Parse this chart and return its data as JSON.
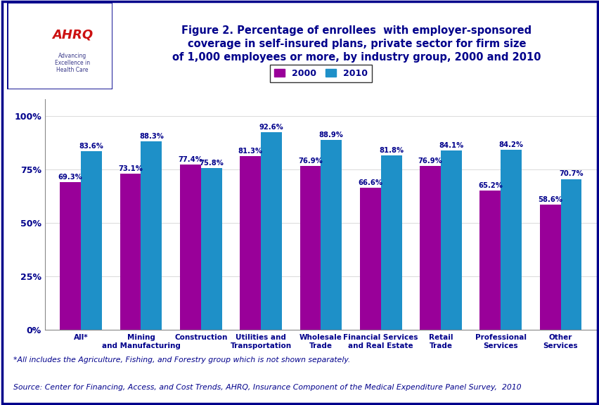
{
  "categories": [
    "All*",
    "Mining\nand Manufacturing",
    "Construction",
    "Utilities and\nTransportation",
    "Wholesale\nTrade",
    "Financial Services\nand Real Estate",
    "Retail\nTrade",
    "Professional\nServices",
    "Other\nServices"
  ],
  "values_2000": [
    69.3,
    73.1,
    77.4,
    81.3,
    76.9,
    66.6,
    76.9,
    65.2,
    58.6
  ],
  "values_2010": [
    83.6,
    88.3,
    75.8,
    92.6,
    88.9,
    81.8,
    84.1,
    84.2,
    70.7
  ],
  "color_2000": "#990099",
  "color_2010": "#1E90C8",
  "title_line1": "Figure 2. Percentage of enrollees  with employer-sponsored",
  "title_line2": "coverage in self-insured plans, private sector for firm size",
  "title_line3": "of 1,000 employees or more, by industry group, 2000 and 2010",
  "ylabel_ticks": [
    "0%",
    "25%",
    "50%",
    "75%",
    "100%"
  ],
  "ytick_vals": [
    0,
    25,
    50,
    75,
    100
  ],
  "ylim": [
    0,
    108
  ],
  "legend_labels": [
    "2000",
    "2010"
  ],
  "footnote1": "*All includes the Agriculture, Fishing, and Forestry group which is not shown separately.",
  "footnote2": "Source: Center for Financing, Access, and Cost Trends, AHRQ, Insurance Component of the Medical Expenditure Panel Survey,  2010",
  "bar_width": 0.35,
  "background_color": "#FFFFFF",
  "title_color": "#00008B",
  "value_label_color": "#00008B",
  "tick_label_color": "#00008B",
  "footnote_color": "#00008B",
  "border_color": "#00008B",
  "separator_color": "#00008B",
  "logo_bg": "#4A90C0",
  "logo_text_color": "#CC0000",
  "logo_sub_color": "#4A4A7A"
}
